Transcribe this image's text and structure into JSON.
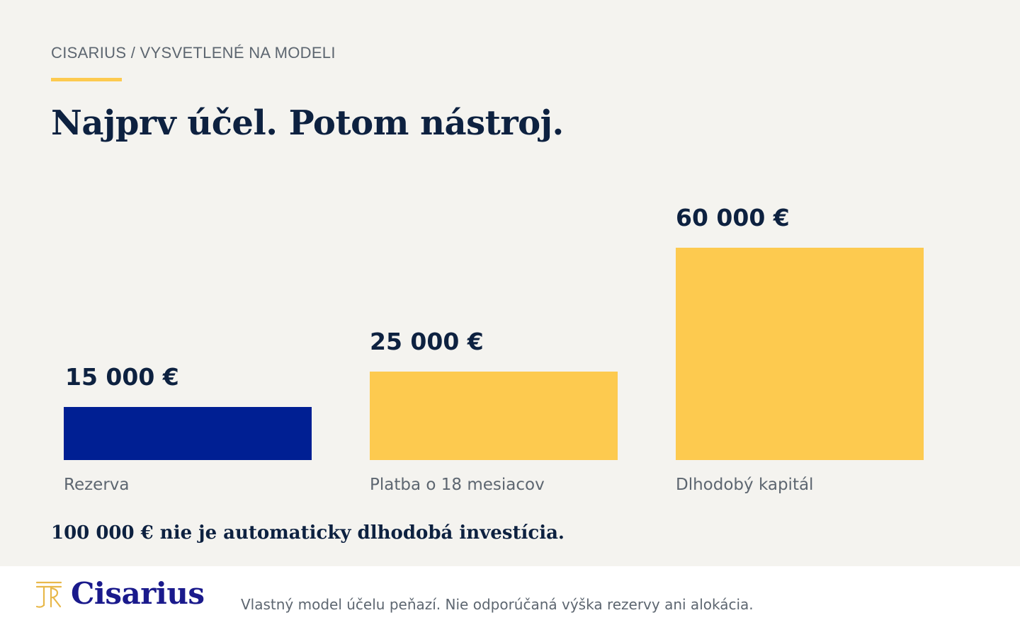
{
  "header": {
    "breadcrumb": "CISARIUS / VYSVETLENÉ NA MODELI",
    "title": "Najprv účel. Potom nástroj."
  },
  "colors": {
    "accent": "#fdca4f",
    "navy_bar": "#001f93",
    "text_dark": "#0d2140",
    "text_muted": "#5d6670",
    "brand": "#1a1a8c"
  },
  "chart_data": {
    "type": "bar",
    "categories": [
      "Rezerva",
      "Platba o 18 mesiacov",
      "Dlhodobý kapitál"
    ],
    "values": [
      15000,
      25000,
      60000
    ],
    "value_labels": [
      "15 000 €",
      "25 000 €",
      "60 000 €"
    ],
    "bar_colors": [
      "#001f93",
      "#fdca4f",
      "#fdca4f"
    ],
    "title": "",
    "xlabel": "",
    "ylabel": "",
    "ylim": [
      0,
      60000
    ],
    "grid": false
  },
  "note": "100 000 € nie je automaticky dlhodobá investícia.",
  "footer": {
    "logo_text": "Cisarius",
    "logo_icon": "cisarius-monogram-icon",
    "disclaimer": "Vlastný model účelu peňazí. Nie odporúčaná výška rezervy ani alokácia."
  }
}
